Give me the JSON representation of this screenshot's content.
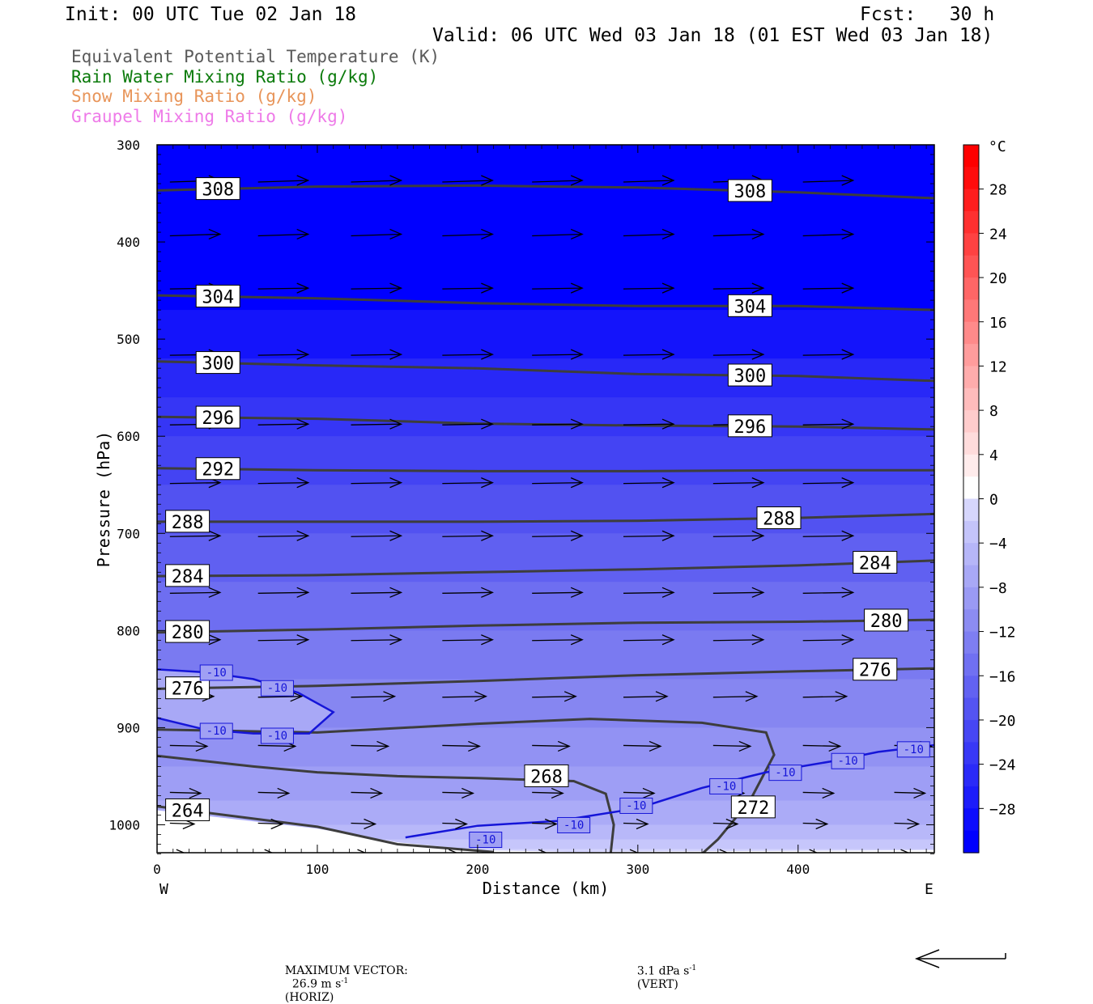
{
  "header": {
    "init": "Init: 00 UTC Tue 02 Jan 18",
    "fcst": "Fcst:   30 h",
    "valid": "Valid: 06 UTC Wed 03 Jan 18 (01 EST Wed 03 Jan 18)"
  },
  "fields": [
    {
      "label": "Equivalent Potential Temperature (K)",
      "color": "#5a5a5a"
    },
    {
      "label": "Rain Water Mixing Ratio (g/kg)",
      "color": "#0a7a0a"
    },
    {
      "label": "Snow Mixing Ratio (g/kg)",
      "color": "#e8955a"
    },
    {
      "label": "Graupel Mixing Ratio (g/kg)",
      "color": "#ee7ae8"
    }
  ],
  "footer": {
    "max_vector_label": "MAXIMUM VECTOR:",
    "horiz_value": "26.9 m s",
    "horiz_exp": "-1",
    "horiz_tag": "(HORIZ)",
    "vert_value": "3.1 dPa s",
    "vert_exp": "-1",
    "vert_tag": "(VERT)"
  },
  "chart_data": {
    "type": "cross-section",
    "xlabel": "Distance (km)",
    "ylabel": "Pressure (hPa)",
    "xlim": [
      0,
      485
    ],
    "ylim": [
      300,
      1030
    ],
    "y_scale": "linear-reversed",
    "xticks": [
      0,
      100,
      200,
      300,
      400
    ],
    "yticks": [
      300,
      400,
      500,
      600,
      700,
      800,
      900,
      1000
    ],
    "x_end_labels": {
      "left": "W",
      "right": "E"
    },
    "colorbar": {
      "unit": "°C",
      "labels": [
        28,
        24,
        20,
        16,
        12,
        8,
        4,
        0,
        -4,
        -8,
        -12,
        -16,
        -20,
        -24,
        -28
      ],
      "levels": [
        -32,
        -30,
        -28,
        -26,
        -24,
        -22,
        -20,
        -18,
        -16,
        -14,
        -12,
        -10,
        -8,
        -6,
        -4,
        -2,
        0,
        2,
        4,
        6,
        8,
        10,
        12,
        14,
        16,
        18,
        20,
        22,
        24,
        26,
        28,
        30,
        32
      ],
      "colors": [
        "#0000ff",
        "#0c0cfd",
        "#1c1cfa",
        "#2a2af8",
        "#3838f6",
        "#4646f4",
        "#5454f2",
        "#6262f2",
        "#7070f2",
        "#7e7ef2",
        "#8c8cf2",
        "#9a9af4",
        "#a8a8f6",
        "#b6b6f8",
        "#c4c4fa",
        "#d6d6fc",
        "#ffffff",
        "#ffecec",
        "#ffdcdc",
        "#ffcccc",
        "#ffbcbc",
        "#ffacac",
        "#ff9c9c",
        "#ff8a8a",
        "#ff7878",
        "#ff6666",
        "#ff5454",
        "#ff4242",
        "#ff3030",
        "#ff1e1e",
        "#ff0c0c",
        "#ff0000"
      ]
    },
    "theta_e_contours": [
      {
        "value": 308,
        "labels": [
          "308",
          "308"
        ],
        "points": [
          [
            0,
            347
          ],
          [
            100,
            343
          ],
          [
            200,
            342
          ],
          [
            300,
            344
          ],
          [
            400,
            349
          ],
          [
            485,
            355
          ]
        ]
      },
      {
        "value": 304,
        "labels": [
          "304",
          "304"
        ],
        "points": [
          [
            0,
            455
          ],
          [
            100,
            458
          ],
          [
            200,
            463
          ],
          [
            300,
            466
          ],
          [
            400,
            466
          ],
          [
            485,
            470
          ]
        ]
      },
      {
        "value": 300,
        "labels": [
          "300",
          "300"
        ],
        "points": [
          [
            0,
            523
          ],
          [
            100,
            527
          ],
          [
            200,
            530
          ],
          [
            300,
            536
          ],
          [
            400,
            538
          ],
          [
            485,
            543
          ]
        ]
      },
      {
        "value": 296,
        "labels": [
          "296",
          "296"
        ],
        "points": [
          [
            0,
            580
          ],
          [
            100,
            582
          ],
          [
            200,
            587
          ],
          [
            300,
            589
          ],
          [
            400,
            590
          ],
          [
            485,
            593
          ]
        ]
      },
      {
        "value": 292,
        "labels": [
          "292"
        ],
        "points": [
          [
            0,
            633
          ],
          [
            100,
            635
          ],
          [
            200,
            636
          ],
          [
            300,
            636
          ],
          [
            400,
            635
          ],
          [
            485,
            635
          ]
        ]
      },
      {
        "value": 288,
        "labels": [
          "288",
          "288"
        ],
        "points": [
          [
            0,
            688
          ],
          [
            100,
            688
          ],
          [
            200,
            688
          ],
          [
            300,
            687
          ],
          [
            400,
            684
          ],
          [
            485,
            680
          ]
        ]
      },
      {
        "value": 284,
        "labels": [
          "284",
          "284"
        ],
        "points": [
          [
            0,
            744
          ],
          [
            100,
            743
          ],
          [
            200,
            740
          ],
          [
            300,
            737
          ],
          [
            400,
            733
          ],
          [
            485,
            728
          ]
        ]
      },
      {
        "value": 280,
        "labels": [
          "280",
          "280"
        ],
        "points": [
          [
            0,
            802
          ],
          [
            100,
            799
          ],
          [
            200,
            795
          ],
          [
            300,
            792
          ],
          [
            400,
            791
          ],
          [
            485,
            789
          ]
        ]
      },
      {
        "value": 276,
        "labels": [
          "276",
          "276"
        ],
        "points": [
          [
            0,
            860
          ],
          [
            100,
            857
          ],
          [
            200,
            852
          ],
          [
            300,
            846
          ],
          [
            400,
            842
          ],
          [
            485,
            839
          ]
        ]
      },
      {
        "value": 272,
        "labels": [
          "272"
        ],
        "points": [
          [
            0,
            902
          ],
          [
            100,
            905
          ],
          [
            200,
            896
          ],
          [
            270,
            891
          ],
          [
            340,
            895
          ],
          [
            380,
            905
          ],
          [
            385,
            928
          ],
          [
            370,
            975
          ],
          [
            350,
            1015
          ],
          [
            340,
            1030
          ]
        ]
      },
      {
        "value": 268,
        "labels": [
          "268"
        ],
        "points": [
          [
            0,
            929
          ],
          [
            60,
            940
          ],
          [
            100,
            946
          ],
          [
            150,
            950
          ],
          [
            200,
            952
          ],
          [
            260,
            955
          ],
          [
            280,
            968
          ],
          [
            285,
            1000
          ],
          [
            283,
            1030
          ]
        ]
      },
      {
        "value": 264,
        "labels": [
          "264"
        ],
        "points": [
          [
            0,
            981
          ],
          [
            100,
            1002
          ],
          [
            150,
            1020
          ],
          [
            210,
            1028
          ]
        ]
      }
    ],
    "temperature_contours": [
      {
        "value": -10,
        "color": "#1515d8",
        "points": [
          [
            0,
            890
          ],
          [
            30,
            902
          ],
          [
            60,
            906
          ],
          [
            95,
            906
          ],
          [
            110,
            884
          ],
          [
            88,
            864
          ],
          [
            60,
            850
          ],
          [
            30,
            843
          ],
          [
            0,
            840
          ]
        ]
      },
      {
        "value": -10,
        "color": "#1515d8",
        "points": [
          [
            155,
            1013
          ],
          [
            200,
            1001
          ],
          [
            250,
            996
          ],
          [
            300,
            983
          ],
          [
            340,
            962
          ],
          [
            380,
            946
          ],
          [
            420,
            935
          ],
          [
            450,
            925
          ],
          [
            485,
            918
          ]
        ]
      }
    ],
    "temperature_labels": [
      "-10",
      "-10",
      "-10",
      "-10",
      "-10",
      "-10",
      "-10",
      "-10",
      "-10",
      "-10",
      "-10"
    ],
    "max_vector": {
      "horiz_m_s": 26.9,
      "vert_dPa_s": 3.1
    }
  }
}
